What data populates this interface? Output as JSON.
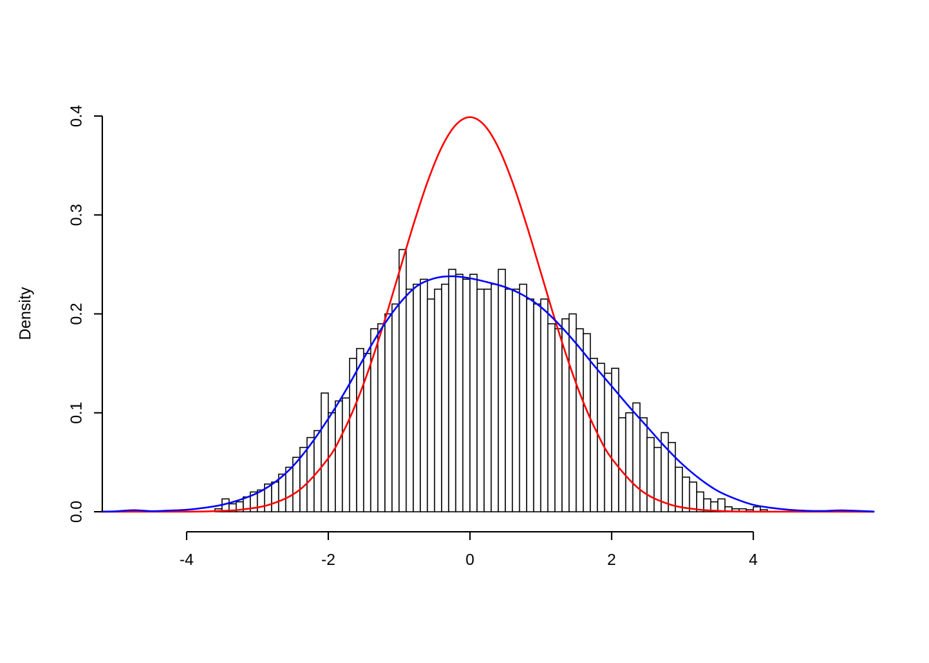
{
  "chart_data": {
    "type": "histogram",
    "title": "",
    "xlabel": "",
    "ylabel": "Density",
    "xlim": [
      -5.2,
      5.7
    ],
    "ylim": [
      0.0,
      0.4
    ],
    "grid": false,
    "legend": false,
    "background": "#FFFFFF",
    "axis_color": "#000000",
    "x_ticks": [
      {
        "value": -4,
        "label": "-4"
      },
      {
        "value": -2,
        "label": "-2"
      },
      {
        "value": 0,
        "label": "0"
      },
      {
        "value": 2,
        "label": "2"
      },
      {
        "value": 4,
        "label": "4"
      }
    ],
    "y_ticks": [
      {
        "value": 0.0,
        "label": "0.0"
      },
      {
        "value": 0.1,
        "label": "0.1"
      },
      {
        "value": 0.2,
        "label": "0.2"
      },
      {
        "value": 0.3,
        "label": "0.3"
      },
      {
        "value": 0.4,
        "label": "0.4"
      }
    ],
    "histogram": {
      "bin_start": -3.6,
      "bin_width": 0.1,
      "fill": "#FFFFFF",
      "stroke": "#000000",
      "densities": [
        0.003,
        0.013,
        0.008,
        0.01,
        0.015,
        0.02,
        0.022,
        0.028,
        0.03,
        0.038,
        0.045,
        0.055,
        0.065,
        0.075,
        0.082,
        0.12,
        0.1,
        0.112,
        0.115,
        0.155,
        0.165,
        0.16,
        0.185,
        0.19,
        0.2,
        0.21,
        0.265,
        0.225,
        0.23,
        0.235,
        0.215,
        0.225,
        0.23,
        0.245,
        0.24,
        0.235,
        0.24,
        0.225,
        0.225,
        0.23,
        0.245,
        0.225,
        0.225,
        0.23,
        0.215,
        0.21,
        0.215,
        0.19,
        0.185,
        0.195,
        0.2,
        0.185,
        0.18,
        0.155,
        0.15,
        0.14,
        0.145,
        0.095,
        0.1,
        0.11,
        0.095,
        0.075,
        0.065,
        0.08,
        0.07,
        0.045,
        0.035,
        0.03,
        0.02,
        0.013,
        0.01,
        0.013,
        0.005,
        0.003,
        0.003,
        0.002,
        0.005,
        0.002
      ]
    },
    "curves": [
      {
        "name": "standard-normal-density",
        "color": "#FF0000",
        "x": [
          -5.2,
          -4.6,
          -4.0,
          -3.6,
          -3.2,
          -2.8,
          -2.4,
          -2.0,
          -1.8,
          -1.6,
          -1.4,
          -1.2,
          -1.0,
          -0.8,
          -0.6,
          -0.4,
          -0.2,
          0.0,
          0.2,
          0.4,
          0.6,
          0.8,
          1.0,
          1.2,
          1.4,
          1.6,
          1.8,
          2.0,
          2.4,
          2.8,
          3.2,
          3.6,
          4.0,
          4.6,
          5.7
        ],
        "y": [
          0.0,
          0.0001,
          0.0001,
          0.0006,
          0.0024,
          0.0079,
          0.0224,
          0.054,
          0.079,
          0.1109,
          0.1497,
          0.1942,
          0.242,
          0.2897,
          0.3332,
          0.3683,
          0.391,
          0.3989,
          0.391,
          0.3683,
          0.3332,
          0.2897,
          0.242,
          0.1942,
          0.1497,
          0.1109,
          0.079,
          0.054,
          0.0224,
          0.0079,
          0.0024,
          0.0006,
          0.0001,
          0.0001,
          0.0
        ]
      },
      {
        "name": "sample-kernel-density",
        "color": "#0000FF",
        "x": [
          -5.2,
          -5.0,
          -4.75,
          -4.5,
          -4.25,
          -4.0,
          -3.75,
          -3.5,
          -3.25,
          -3.0,
          -2.75,
          -2.5,
          -2.25,
          -2.0,
          -1.75,
          -1.5,
          -1.25,
          -1.0,
          -0.75,
          -0.5,
          -0.25,
          0.0,
          0.25,
          0.5,
          0.75,
          1.0,
          1.25,
          1.5,
          1.75,
          2.0,
          2.25,
          2.5,
          2.75,
          3.0,
          3.25,
          3.5,
          3.75,
          4.0,
          4.25,
          4.5,
          4.75,
          5.0,
          5.25,
          5.7
        ],
        "y": [
          0.0002,
          0.0004,
          0.0016,
          0.0006,
          0.0012,
          0.002,
          0.004,
          0.007,
          0.012,
          0.019,
          0.03,
          0.046,
          0.068,
          0.094,
          0.123,
          0.155,
          0.185,
          0.21,
          0.228,
          0.236,
          0.238,
          0.236,
          0.232,
          0.227,
          0.219,
          0.207,
          0.19,
          0.17,
          0.148,
          0.127,
          0.106,
          0.086,
          0.066,
          0.048,
          0.033,
          0.021,
          0.013,
          0.007,
          0.004,
          0.002,
          0.001,
          0.0008,
          0.0014,
          0.0002
        ]
      }
    ]
  }
}
